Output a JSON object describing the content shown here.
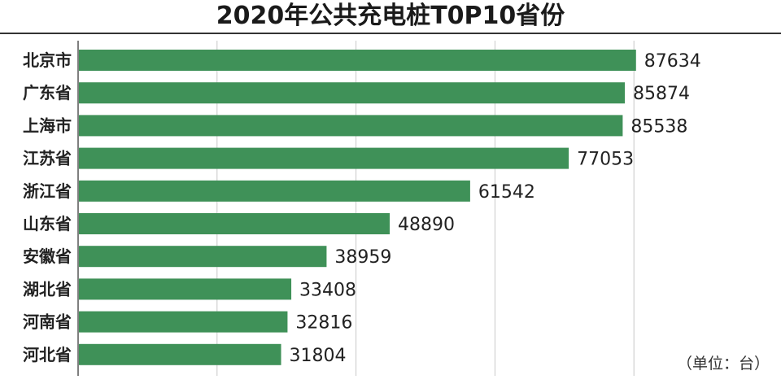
{
  "chart_data": {
    "type": "bar",
    "orientation": "horizontal",
    "title": "2020年公共充电桩T0P10省份",
    "unit_note": "（单位：台）",
    "categories": [
      "北京市",
      "广东省",
      "上海市",
      "江苏省",
      "浙江省",
      "山东省",
      "安徽省",
      "湖北省",
      "河南省",
      "河北省"
    ],
    "values": [
      87634,
      85874,
      85538,
      77053,
      61542,
      48890,
      38959,
      33408,
      32816,
      31804
    ],
    "xlim": [
      0,
      100000
    ],
    "grid": true,
    "bar_color": "#3f9158"
  }
}
